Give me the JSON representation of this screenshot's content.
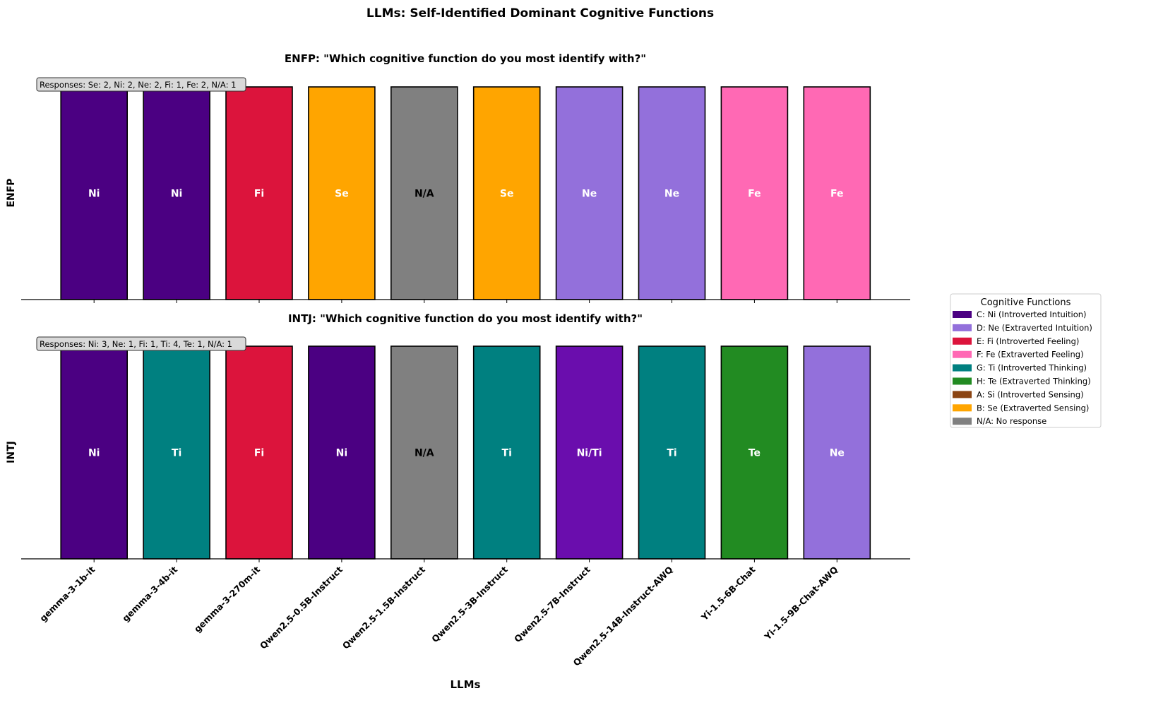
{
  "chart_data": {
    "title": "LLMs: Self-Identified Dominant Cognitive Functions",
    "xlabel": "LLMs",
    "categories": [
      "gemma-3-1b-it",
      "gemma-3-4b-it",
      "gemma-3-270m-it",
      "Qwen2.5-0.5B-Instruct",
      "Qwen2.5-1.5B-Instruct",
      "Qwen2.5-3B-Instruct",
      "Qwen2.5-7B-Instruct",
      "Qwen2.5-14B-Instruct-AWQ",
      "Yi-1.5-6B-Chat",
      "Yi-1.5-9B-Chat-AWQ"
    ],
    "panels": [
      {
        "type": "bar",
        "ylabel": "ENFP",
        "title": "ENFP: \"Which cognitive function do you most identify with?\"",
        "responses": "Responses: Se: 2, Ni: 2, Ne: 2, Fi: 1, Fe: 2, N/A: 1",
        "labels": [
          "Ni",
          "Ni",
          "Fi",
          "Se",
          "N/A",
          "Se",
          "Ne",
          "Ne",
          "Fe",
          "Fe"
        ],
        "values": [
          1,
          1,
          1,
          1,
          1,
          1,
          1,
          1,
          1,
          1
        ]
      },
      {
        "type": "bar",
        "ylabel": "INTJ",
        "title": "INTJ: \"Which cognitive function do you most identify with?\"",
        "responses": "Responses: Ni: 3, Ne: 1, Fi: 1, Ti: 4, Te: 1, N/A: 1",
        "labels": [
          "Ni",
          "Ti",
          "Fi",
          "Ni",
          "N/A",
          "Ti",
          "Ni/Ti",
          "Ti",
          "Te",
          "Ne"
        ],
        "values": [
          1,
          1,
          1,
          1,
          1,
          1,
          1,
          1,
          1,
          1
        ]
      }
    ],
    "colors": {
      "Ni": "#4B0082",
      "Ne": "#9370DB",
      "Fi": "#DC143C",
      "Fe": "#FF69B4",
      "Ti": "#008080",
      "Te": "#228B22",
      "Si": "#8B4513",
      "Se": "#FFA500",
      "N/A": "#808080",
      "Ni/Ti": "#6A0DAD"
    },
    "legend": {
      "title": "Cognitive Functions",
      "position": "right",
      "items": [
        {
          "key": "Ni",
          "label": "C: Ni (Introverted Intuition)"
        },
        {
          "key": "Ne",
          "label": "D: Ne (Extraverted Intuition)"
        },
        {
          "key": "Fi",
          "label": "E: Fi (Introverted Feeling)"
        },
        {
          "key": "Fe",
          "label": "F: Fe (Extraverted Feeling)"
        },
        {
          "key": "Ti",
          "label": "G: Ti (Introverted Thinking)"
        },
        {
          "key": "Te",
          "label": "H: Te (Extraverted Thinking)"
        },
        {
          "key": "Si",
          "label": "A: Si (Introverted Sensing)"
        },
        {
          "key": "Se",
          "label": "B: Se (Extraverted Sensing)"
        },
        {
          "key": "N/A",
          "label": "N/A: No response"
        }
      ]
    }
  }
}
